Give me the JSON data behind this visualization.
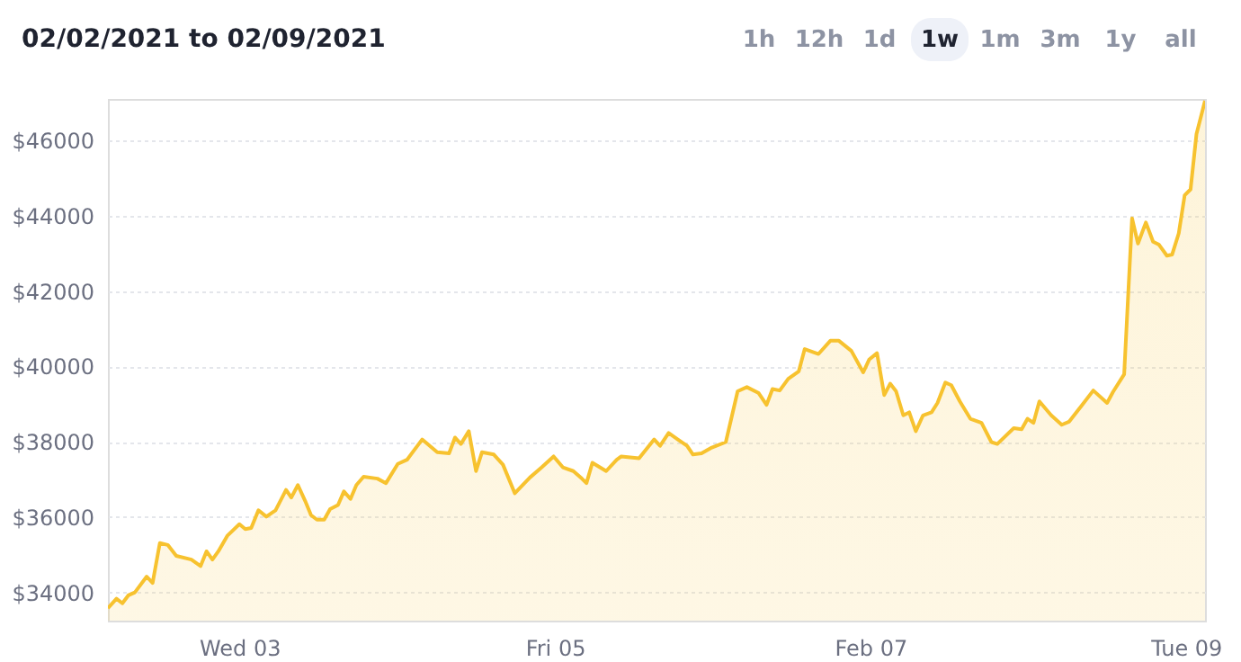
{
  "chart_data": {
    "type": "area",
    "title": "02/02/2021 to 02/09/2021",
    "annotations": [
      "1h",
      "12h",
      "1d",
      "1w",
      "1m",
      "3m",
      "1y",
      "all"
    ],
    "x": [
      "2021-02-02T04:00",
      "2021-02-02T05:18",
      "2021-02-02T06:12",
      "2021-02-02T07:06",
      "2021-02-02T08:06",
      "2021-02-02T09:54",
      "2021-02-02T10:48",
      "2021-02-02T11:54",
      "2021-02-02T13:06",
      "2021-02-02T14:24",
      "2021-02-02T16:42",
      "2021-02-02T18:06",
      "2021-02-02T19:00",
      "2021-02-02T19:54",
      "2021-02-02T20:48",
      "2021-02-02T22:12",
      "2021-02-03T00:00",
      "2021-02-03T00:54",
      "2021-02-03T01:48",
      "2021-02-03T02:54",
      "2021-02-03T04:06",
      "2021-02-03T05:30",
      "2021-02-03T07:06",
      "2021-02-03T07:54",
      "2021-02-03T08:54",
      "2021-02-03T10:00",
      "2021-02-03T10:54",
      "2021-02-03T11:48",
      "2021-02-03T12:54",
      "2021-02-03T13:48",
      "2021-02-03T15:00",
      "2021-02-03T15:54",
      "2021-02-03T16:54",
      "2021-02-03T17:48",
      "2021-02-03T18:54",
      "2021-02-03T21:00",
      "2021-02-03T22:18",
      "2021-02-04T00:06",
      "2021-02-04T01:30",
      "2021-02-04T03:48",
      "2021-02-04T06:06",
      "2021-02-04T07:54",
      "2021-02-04T08:48",
      "2021-02-04T09:42",
      "2021-02-04T10:54",
      "2021-02-04T12:00",
      "2021-02-04T12:54",
      "2021-02-04T14:42",
      "2021-02-04T16:06",
      "2021-02-04T17:54",
      "2021-02-04T20:12",
      "2021-02-04T22:00",
      "2021-02-04T23:48",
      "2021-02-05T01:12",
      "2021-02-05T02:48",
      "2021-02-05T04:06",
      "2021-02-05T04:48",
      "2021-02-05T05:42",
      "2021-02-05T07:48",
      "2021-02-05T09:24",
      "2021-02-05T10:06",
      "2021-02-05T12:48",
      "2021-02-05T15:06",
      "2021-02-05T16:00",
      "2021-02-05T17:18",
      "2021-02-05T18:42",
      "2021-02-05T20:06",
      "2021-02-05T21:00",
      "2021-02-05T22:18",
      "2021-02-05T23:42",
      "2021-02-06T02:00",
      "2021-02-06T03:48",
      "2021-02-06T05:12",
      "2021-02-06T07:00",
      "2021-02-06T08:12",
      "2021-02-06T09:06",
      "2021-02-06T10:12",
      "2021-02-06T11:30",
      "2021-02-06T13:06",
      "2021-02-06T14:00",
      "2021-02-06T16:06",
      "2021-02-06T17:54",
      "2021-02-06T19:12",
      "2021-02-06T21:06",
      "2021-02-06T22:54",
      "2021-02-06T23:48",
      "2021-02-07T01:00",
      "2021-02-07T02:06",
      "2021-02-07T03:00",
      "2021-02-07T03:54",
      "2021-02-07T05:00",
      "2021-02-07T05:54",
      "2021-02-07T06:54",
      "2021-02-07T08:00",
      "2021-02-07T09:18",
      "2021-02-07T10:12",
      "2021-02-07T11:24",
      "2021-02-07T12:18",
      "2021-02-07T13:36",
      "2021-02-07T15:12",
      "2021-02-07T16:54",
      "2021-02-07T18:24",
      "2021-02-07T19:18",
      "2021-02-07T21:48",
      "2021-02-07T23:00",
      "2021-02-07T23:54",
      "2021-02-08T00:48",
      "2021-02-08T01:42",
      "2021-02-08T03:30",
      "2021-02-08T05:06",
      "2021-02-08T06:12",
      "2021-02-08T08:06",
      "2021-02-08T09:54",
      "2021-02-08T12:00",
      "2021-02-08T12:54",
      "2021-02-08T14:36",
      "2021-02-08T15:48",
      "2021-02-08T16:42",
      "2021-02-08T17:54",
      "2021-02-08T19:00",
      "2021-02-08T19:54",
      "2021-02-08T21:06",
      "2021-02-08T21:54",
      "2021-02-08T22:54",
      "2021-02-08T23:48",
      "2021-02-09T00:42",
      "2021-02-09T01:36",
      "2021-02-09T02:54"
    ],
    "series": [
      {
        "color": "#f7c22f",
        "values": [
          33580,
          33830,
          33710,
          33920,
          34000,
          34420,
          34250,
          35310,
          35260,
          34970,
          34870,
          34700,
          35090,
          34870,
          35090,
          35510,
          35810,
          35680,
          35710,
          36180,
          36010,
          36180,
          36720,
          36520,
          36850,
          36430,
          36050,
          35930,
          35930,
          36210,
          36320,
          36680,
          36480,
          36850,
          37070,
          37020,
          36900,
          37410,
          37520,
          38060,
          37720,
          37690,
          38110,
          37940,
          38280,
          37220,
          37720,
          37660,
          37390,
          36630,
          37050,
          37320,
          37610,
          37320,
          37220,
          37020,
          36900,
          37440,
          37220,
          37520,
          37610,
          37560,
          38060,
          37890,
          38230,
          38060,
          37890,
          37660,
          37690,
          37830,
          37990,
          39340,
          39450,
          39290,
          38980,
          39400,
          39360,
          39670,
          39870,
          40460,
          40330,
          40680,
          40680,
          40410,
          39840,
          40180,
          40350,
          39240,
          39540,
          39340,
          38700,
          38780,
          38280,
          38700,
          38780,
          39030,
          39570,
          39500,
          39070,
          38610,
          38500,
          37990,
          37940,
          38360,
          38330,
          38610,
          38500,
          39070,
          38700,
          38450,
          38530,
          38950,
          39360,
          39030,
          39320,
          39790,
          43930,
          43260,
          43820,
          43310,
          43230,
          42940,
          42970,
          43530,
          44540,
          44700,
          46170,
          47050
        ]
      }
    ],
    "xlim": [
      "2021-02-02T04:00",
      "2021-02-09T02:54"
    ],
    "xticks": [
      {
        "value": "2021-02-03",
        "label": "Wed 03"
      },
      {
        "value": "2021-02-05",
        "label": "Fri 05"
      },
      {
        "value": "2021-02-07",
        "label": "Feb 07"
      },
      {
        "value": "2021-02-09",
        "label": "Tue 09"
      }
    ],
    "ylim": [
      33250,
      47100
    ],
    "yticks": [
      {
        "value": 34000,
        "label": "$34000"
      },
      {
        "value": 36000,
        "label": "$36000"
      },
      {
        "value": 38000,
        "label": "$38000"
      },
      {
        "value": 40000,
        "label": "$40000"
      },
      {
        "value": 42000,
        "label": "$42000"
      },
      {
        "value": 44000,
        "label": "$44000"
      },
      {
        "value": 46000,
        "label": "$46000"
      }
    ],
    "grid": "y"
  }
}
